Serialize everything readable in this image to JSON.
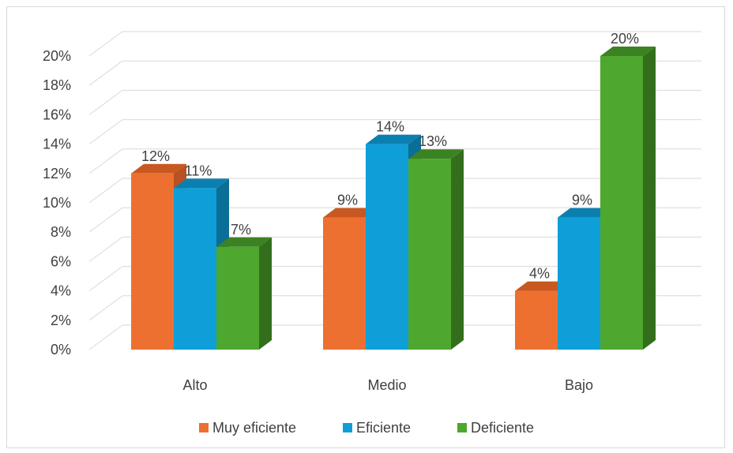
{
  "chart_data": {
    "type": "bar",
    "categories": [
      "Alto",
      "Medio",
      "Bajo"
    ],
    "series": [
      {
        "name": "Muy eficiente",
        "values": [
          12,
          9,
          4
        ],
        "color": "#ED7031",
        "side": "#B85222",
        "top": "#C8581F"
      },
      {
        "name": "Eficiente",
        "values": [
          11,
          14,
          9
        ],
        "color": "#0E9FD8",
        "side": "#0A6E97",
        "top": "#0B80B0"
      },
      {
        "name": "Deficiente",
        "values": [
          7,
          13,
          20
        ],
        "color": "#4EA72E",
        "side": "#336E1D",
        "top": "#3B8223"
      }
    ],
    "value_suffix": "%",
    "ylim": [
      0,
      20
    ],
    "yticks": [
      "0%",
      "2%",
      "4%",
      "6%",
      "8%",
      "10%",
      "12%",
      "14%",
      "16%",
      "18%",
      "20%"
    ],
    "grid": true,
    "legend": "bottom",
    "style": "3d-clustered-column"
  }
}
